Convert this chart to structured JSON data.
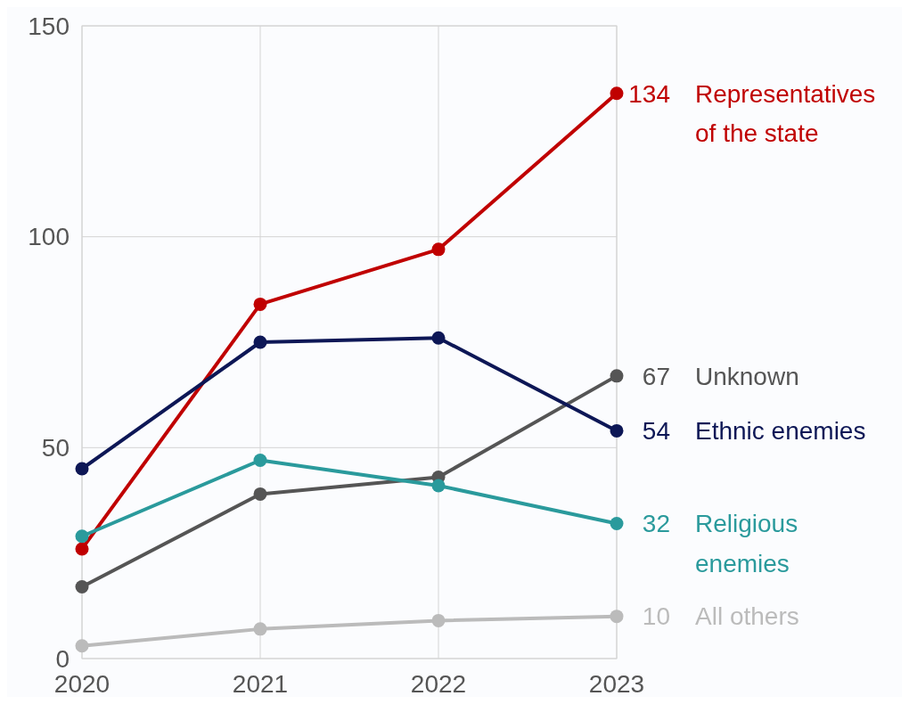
{
  "chart_data": {
    "type": "line",
    "x": [
      2020,
      2021,
      2022,
      2023
    ],
    "xlim": [
      2020,
      2023
    ],
    "xticks": [
      2020,
      2021,
      2022,
      2023
    ],
    "ylim": [
      0,
      150
    ],
    "yticks": [
      0,
      50,
      100,
      150
    ],
    "grid": true,
    "marker": "circle",
    "line_style": "solid",
    "series": [
      {
        "name": "Representatives of the state",
        "color": "#c00000",
        "values": [
          26,
          84,
          97,
          134
        ],
        "value_labels": [
          null,
          null,
          null,
          "134"
        ]
      },
      {
        "name": "Unknown",
        "color": "#555555",
        "values": [
          17,
          39,
          43,
          67
        ],
        "value_labels": [
          null,
          null,
          null,
          "67"
        ]
      },
      {
        "name": "Ethnic enemies",
        "color": "#0d1756",
        "values": [
          45,
          75,
          76,
          54
        ],
        "value_labels": [
          null,
          null,
          null,
          "54"
        ]
      },
      {
        "name": "Religious enemies",
        "color": "#2a9a9c",
        "values": [
          29,
          47,
          41,
          32
        ],
        "value_labels": [
          null,
          null,
          null,
          "32"
        ]
      },
      {
        "name": "All others",
        "color": "#bbbbbb",
        "values": [
          3,
          7,
          9,
          10
        ],
        "value_labels": [
          null,
          null,
          null,
          "10"
        ]
      }
    ]
  }
}
